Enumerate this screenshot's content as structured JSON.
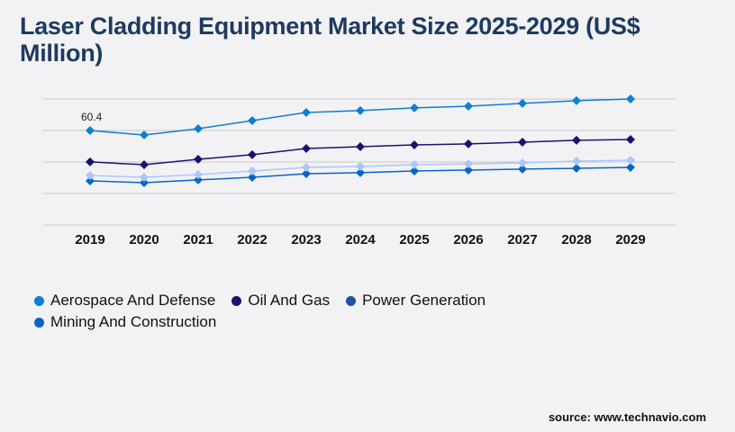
{
  "title": "Laser Cladding Equipment Market Size 2025-2029 (US$ Million)",
  "source": "source: www.technavio.com",
  "chart_data": {
    "type": "line",
    "title": "Laser Cladding Equipment Market Size 2025-2029 (US$ Million)",
    "categories": [
      "2019",
      "2020",
      "2021",
      "2022",
      "2023",
      "2024",
      "2025",
      "2026",
      "2027",
      "2028",
      "2029"
    ],
    "ylim": [
      0,
      80.5
    ],
    "grid": true,
    "legend": "bottom-left",
    "annotations": [
      {
        "series": "Aerospace And Defense",
        "category": "2019",
        "text": "60.4"
      }
    ],
    "series": [
      {
        "name": "Aerospace And Defense",
        "color": "#0b7fd4",
        "legend_color": "#0b7fd4",
        "values": [
          60.4,
          57.5,
          61.5,
          66.7,
          71.9,
          73.1,
          74.8,
          75.9,
          77.7,
          79.4,
          80.5
        ]
      },
      {
        "name": "Oil And Gas",
        "color": "#1a1270",
        "legend_color": "#1a1270",
        "values": [
          40.3,
          38.5,
          42.0,
          44.9,
          48.9,
          50.0,
          51.2,
          51.8,
          52.9,
          54.1,
          54.6
        ]
      },
      {
        "name": "Power Generation",
        "color": "#a8c8f8",
        "legend_color": "#1f4fa8",
        "values": [
          31.6,
          30.5,
          32.2,
          34.5,
          36.8,
          37.4,
          38.5,
          39.1,
          39.7,
          40.8,
          41.4
        ]
      },
      {
        "name": "Mining And Construction",
        "color": "#0a64c8",
        "legend_color": "#0a64c8",
        "values": [
          28.2,
          27.0,
          28.8,
          30.5,
          32.8,
          33.4,
          34.5,
          35.1,
          35.7,
          36.2,
          36.8
        ]
      }
    ]
  }
}
